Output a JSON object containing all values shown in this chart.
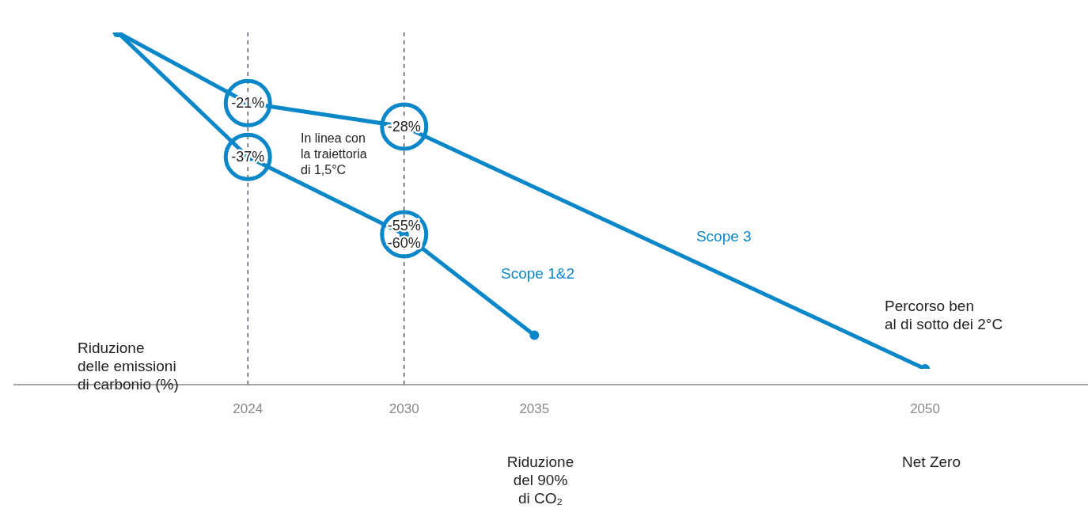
{
  "chart_data": {
    "type": "line",
    "ylabel": "Riduzione\ndelle emissioni\ndi carbonio (%)",
    "series": [
      {
        "name": "Scope 1&2",
        "color": "#0a87c8",
        "x": [
          2019,
          2024,
          2030,
          2035
        ],
        "values": [
          0,
          -37,
          -60,
          -90
        ],
        "value_labels": [
          null,
          "-37%",
          "-55%\n-60%",
          null
        ]
      },
      {
        "name": "Scope 3",
        "color": "#0a87c8",
        "x": [
          2019,
          2024,
          2030,
          2050
        ],
        "values": [
          0,
          -21,
          -28,
          -100
        ],
        "value_labels": [
          null,
          "-21%",
          "-28%",
          null
        ]
      }
    ],
    "xlim": [
      2015,
      2056.5
    ],
    "xticks": [
      2024,
      2030,
      2035,
      2050
    ],
    "tick_labels": "x",
    "grid": false,
    "legend": false,
    "marker": "circle",
    "line_style": "solid",
    "ref_lines": [
      {
        "axis": "x",
        "value": 2024,
        "color": "#333344",
        "line_style": "dashed"
      },
      {
        "axis": "x",
        "value": 2030,
        "color": "#333344",
        "line_style": "dashed"
      }
    ],
    "annotations": [
      "In linea con\nla traiettoria\ndi 1,5°C",
      "Percorso ben\nal di sotto dei 2°C",
      "Riduzione\ndel 90%\ndi CO₂",
      "Net Zero"
    ]
  }
}
